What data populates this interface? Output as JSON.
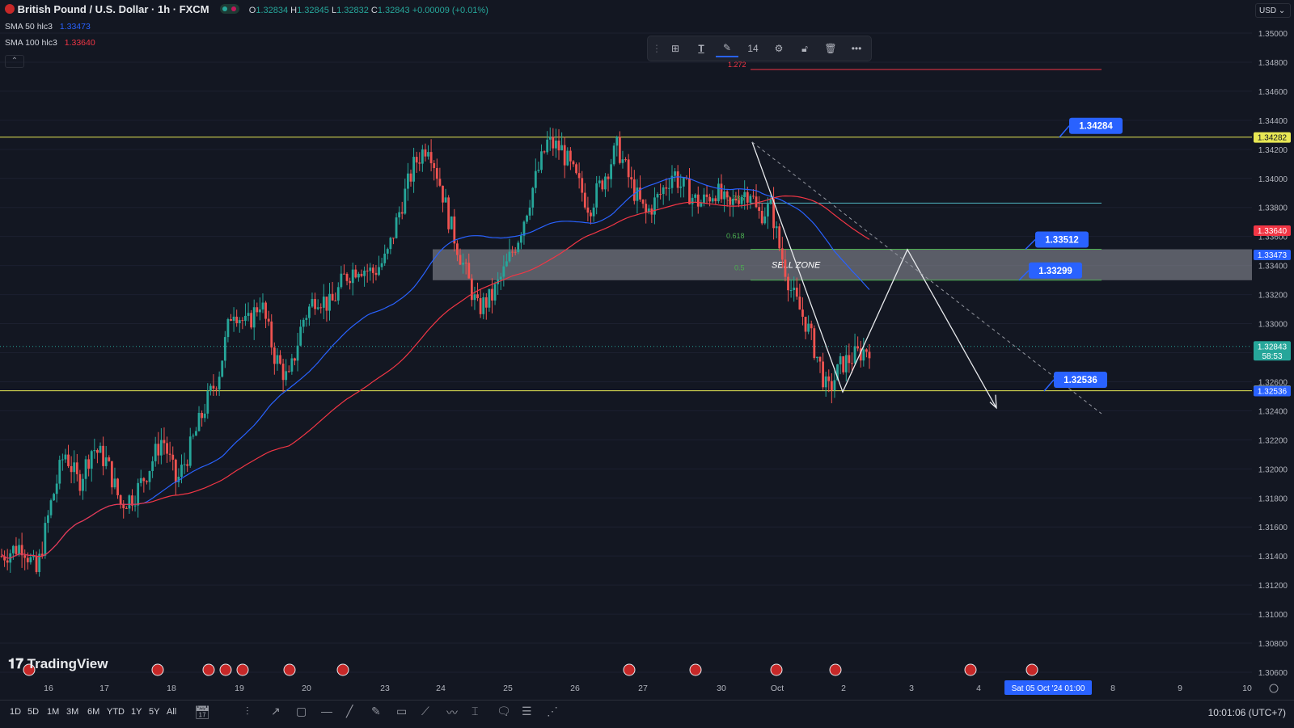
{
  "header": {
    "symbol": "British Pound / U.S. Dollar · 1h · FXCM",
    "o_label": "O",
    "o": "1.32834",
    "h_label": "H",
    "h": "1.32845",
    "l_label": "L",
    "l": "1.32832",
    "c_label": "C",
    "c": "1.32843",
    "change": "+0.00009 (+0.01%)"
  },
  "indicators": [
    {
      "label": "SMA 50 hlc3",
      "value": "1.33473",
      "color": "#2962ff"
    },
    {
      "label": "SMA 100 hlc3",
      "value": "1.33640",
      "color": "#f23645"
    }
  ],
  "currency": "USD",
  "drawing_toolbar": {
    "font_size": "14"
  },
  "logo": "TradingView",
  "timeframes": [
    "1D",
    "5D",
    "1M",
    "3M",
    "6M",
    "YTD",
    "1Y",
    "5Y",
    "All"
  ],
  "clock": "10:01:06 (UTC+7)",
  "colors": {
    "background": "#131722",
    "up": "#26a69a",
    "down": "#ef5350",
    "sma50": "#2962ff",
    "sma100": "#f23645",
    "level_line": "#e8e854",
    "label_blue": "#2962ff",
    "zone": "#9598a1"
  },
  "chart_data": {
    "type": "candlestick",
    "title": "British Pound / U.S. Dollar · 1h · FXCM",
    "y_ticks": [
      "1.35000",
      "1.34800",
      "1.34600",
      "1.34400",
      "1.34200",
      "1.34000",
      "1.33800",
      "1.33600",
      "1.33400",
      "1.33200",
      "1.33000",
      "1.32800",
      "1.32600",
      "1.32400",
      "1.32200",
      "1.32000",
      "1.31800",
      "1.31600",
      "1.31400",
      "1.31200",
      "1.31000",
      "1.30800",
      "1.30600"
    ],
    "ylim": [
      1.3056,
      1.3512
    ],
    "x_ticks": [
      "16",
      "17",
      "18",
      "19",
      "20",
      "23",
      "24",
      "25",
      "26",
      "27",
      "30",
      "Oct",
      "2",
      "3",
      "4",
      "Sat 05 Oct '24   01:00",
      "8",
      "9",
      "10"
    ],
    "price_tags": [
      {
        "value": "1.34282",
        "price": 1.34282,
        "bg": "#e8e854",
        "fg": "#131722"
      },
      {
        "value": "1.33640",
        "price": 1.3364,
        "bg": "#f23645",
        "fg": "#ffffff"
      },
      {
        "value": "1.33473",
        "price": 1.33473,
        "bg": "#2962ff",
        "fg": "#ffffff"
      },
      {
        "value": "1.32843",
        "price": 1.32843,
        "bg": "#26a69a",
        "fg": "#ffffff",
        "sub": "58:53"
      },
      {
        "value": "1.32538",
        "price": 1.32538,
        "bg": "#e8e854",
        "fg": "#131722"
      },
      {
        "value": "1.32536",
        "price": 1.32536,
        "bg": "#2962ff",
        "fg": "#ffffff"
      }
    ],
    "horizontal_levels": [
      1.34284,
      1.32538
    ],
    "callouts": [
      {
        "value": "1.34284",
        "price": 1.34284
      },
      {
        "value": "1.33512",
        "price": 1.33512
      },
      {
        "value": "1.33299",
        "price": 1.33299
      },
      {
        "value": "1.32536",
        "price": 1.32536
      }
    ],
    "sell_zone": {
      "label": "SELL ZONE",
      "top": 1.33512,
      "bottom": 1.33299
    },
    "fib_labels": [
      {
        "label": "1.272",
        "price": 1.3475
      },
      {
        "label": "0.786",
        "price": 1.3383
      },
      {
        "label": "0.618",
        "price": 1.3357
      },
      {
        "label": "0.5",
        "price": 1.3335
      }
    ],
    "close_key": [
      [
        0,
        1.314
      ],
      [
        0.03,
        1.3148
      ],
      [
        0.05,
        1.3128
      ],
      [
        0.07,
        1.3175
      ],
      [
        0.09,
        1.3212
      ],
      [
        0.11,
        1.319
      ],
      [
        0.13,
        1.3215
      ],
      [
        0.15,
        1.3205
      ],
      [
        0.17,
        1.3176
      ],
      [
        0.19,
        1.3182
      ],
      [
        0.21,
        1.32
      ],
      [
        0.23,
        1.3222
      ],
      [
        0.25,
        1.319
      ],
      [
        0.27,
        1.3215
      ],
      [
        0.29,
        1.3242
      ],
      [
        0.31,
        1.3265
      ],
      [
        0.33,
        1.3312
      ],
      [
        0.35,
        1.3298
      ],
      [
        0.37,
        1.3316
      ],
      [
        0.39,
        1.3278
      ],
      [
        0.41,
        1.326
      ],
      [
        0.43,
        1.3302
      ],
      [
        0.45,
        1.332
      ],
      [
        0.47,
        1.3312
      ],
      [
        0.49,
        1.3332
      ],
      [
        0.51,
        1.334
      ],
      [
        0.53,
        1.3335
      ],
      [
        0.55,
        1.3345
      ],
      [
        0.57,
        1.338
      ],
      [
        0.59,
        1.341
      ],
      [
        0.61,
        1.3425
      ],
      [
        0.63,
        1.339
      ],
      [
        0.64,
        1.337
      ],
      [
        0.66,
        1.334
      ],
      [
        0.68,
        1.331
      ],
      [
        0.7,
        1.3318
      ],
      [
        0.72,
        1.3338
      ],
      [
        0.74,
        1.3362
      ],
      [
        0.76,
        1.3395
      ],
      [
        0.78,
        1.3425
      ],
      [
        0.8,
        1.342
      ],
      [
        0.82,
        1.34
      ],
      [
        0.84,
        1.338
      ],
      [
        0.86,
        1.34
      ],
      [
        0.88,
        1.3422
      ],
      [
        0.9,
        1.3395
      ],
      [
        0.92,
        1.3375
      ],
      [
        0.94,
        1.3388
      ],
      [
        0.96,
        1.3405
      ],
      [
        0.97,
        1.3395
      ],
      [
        0.98,
        1.3392
      ],
      [
        0.99,
        1.3385
      ],
      [
        1.0,
        1.3383
      ],
      [
        1.02,
        1.3392
      ],
      [
        1.04,
        1.3378
      ],
      [
        1.05,
        1.3388
      ],
      [
        1.07,
        1.3392
      ],
      [
        1.08,
        1.3375
      ],
      [
        1.1,
        1.338
      ],
      [
        1.11,
        1.3355
      ],
      [
        1.13,
        1.332
      ],
      [
        1.15,
        1.33
      ],
      [
        1.17,
        1.327
      ],
      [
        1.18,
        1.3252
      ],
      [
        1.2,
        1.3272
      ],
      [
        1.22,
        1.3278
      ],
      [
        1.24,
        1.3284
      ]
    ]
  }
}
